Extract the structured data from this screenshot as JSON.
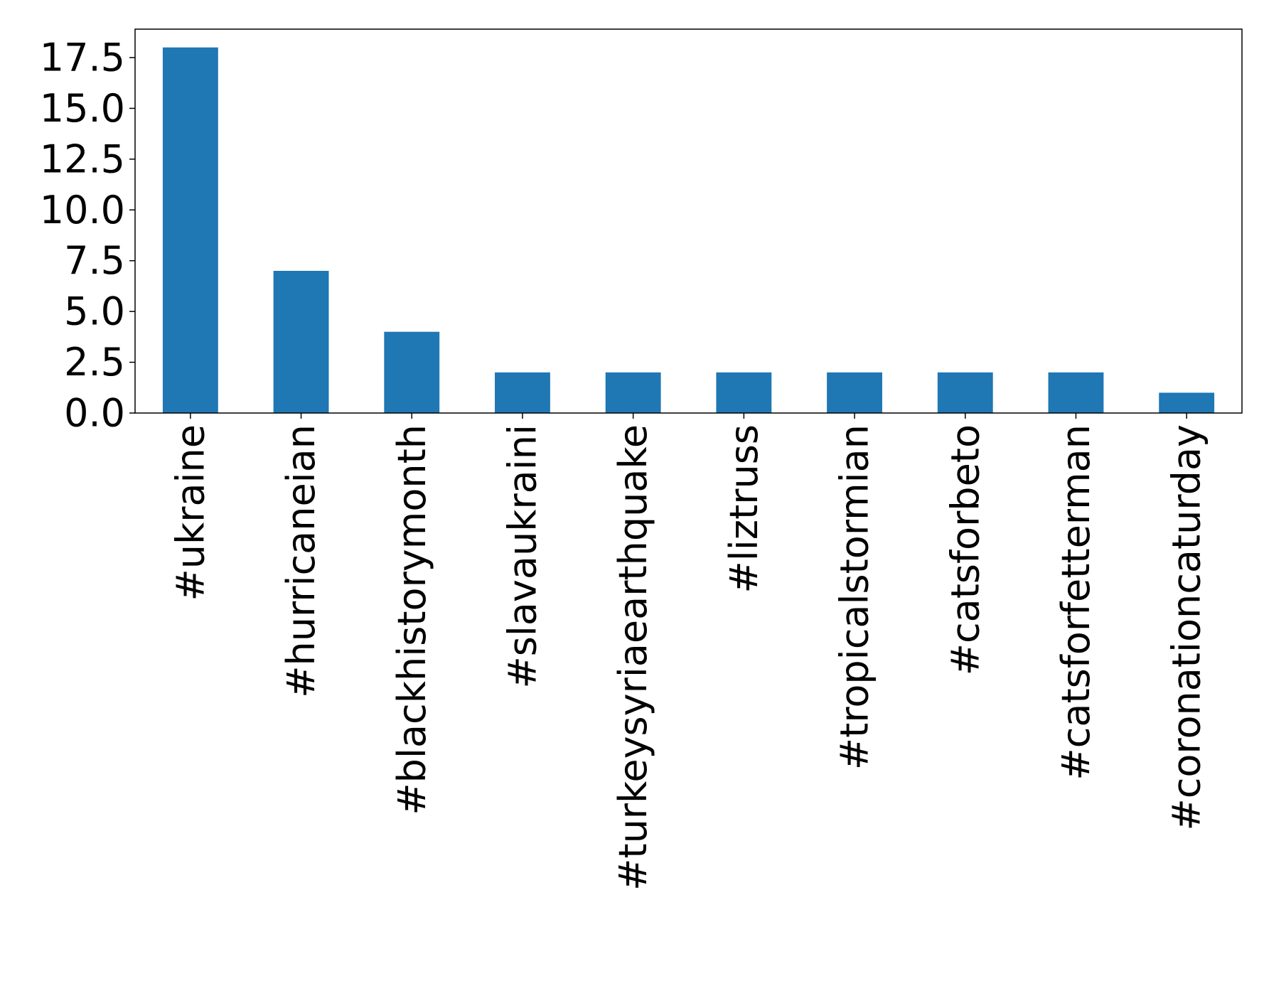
{
  "chart_data": {
    "type": "bar",
    "categories": [
      "#ukraine",
      "#hurricaneian",
      "#blackhistorymonth",
      "#slavaukraini",
      "#turkeysyriaearthquake",
      "#liztruss",
      "#tropicalstormian",
      "#catsforbeto",
      "#catsforfetterman",
      "#coronationcaturday"
    ],
    "values": [
      18,
      7,
      4,
      2,
      2,
      2,
      2,
      2,
      2,
      1
    ],
    "color": "#1f77b4",
    "ylim": [
      0,
      18.9
    ],
    "yticks": [
      {
        "value": 0,
        "label": "0.0"
      },
      2.5,
      {
        "value": 5,
        "label": "5.0"
      },
      7.5,
      {
        "value": 10,
        "label": "10.0"
      },
      12.5,
      {
        "value": 15,
        "label": "15.0"
      },
      17.5
    ],
    "grid": false
  }
}
